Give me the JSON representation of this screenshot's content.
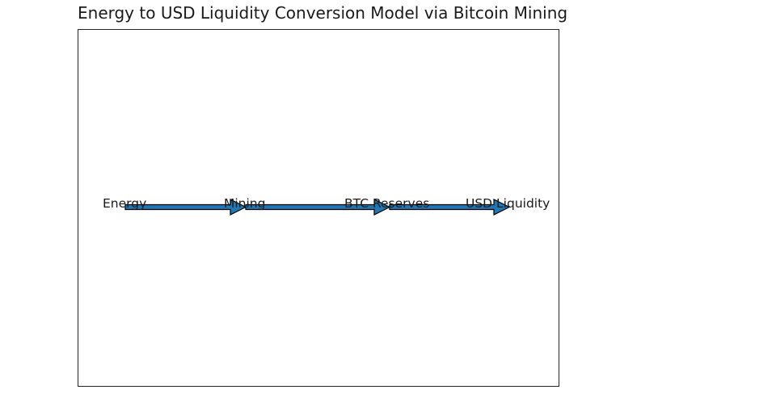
{
  "title": "Energy to USD Liquidity Conversion Model via Bitcoin Mining",
  "flow": {
    "stages": [
      "Energy",
      "Mining",
      "BTC Reserves",
      "USD Liquidity"
    ],
    "arrow_color": "#1f77b4",
    "arrow_edge_color": "#000000"
  }
}
